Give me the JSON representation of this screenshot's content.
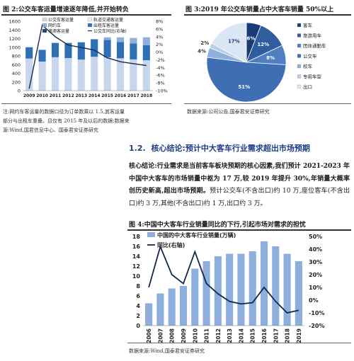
{
  "fig2": {
    "title": "图 2:公交车客运量增速逐年降低,并开始转负",
    "note_line1": "注:网约车客运量的数据口径为订单数乘以 1.5,其客运量",
    "note_line2": "部分与出租车重叠。且仅有 2015 年及以后的数据;数据来",
    "note_line3": "源:Wind,国君信息中心、国泰君安证券研究"
  },
  "fig3": {
    "title": "图 3:2019 年公交车销量占中大客车销量 50%以上",
    "source": "数据来源:公司公告,国泰君安证券研究"
  },
  "section": {
    "number": "1.2.",
    "title": "核心结论:预计中大客车行业需求超出市场预期",
    "para_bold_lead": "核心结论:",
    "para_bold_rest": "行业需求是当前客车板块预期的核心因素,我们预计 2021-2023 年中国中大客车的市场销量中枢为 17 万,较 2019 年提升 30%,年销量大概率创历史新高,超出市场预期。",
    "para_normal": "预计公交车(不含出口)约 10 万,座位客车(不含出口)约 3 万,其他(不含出口)约 1 万,出口约 3 万。"
  },
  "fig4": {
    "title": "图 4:中国中大客车行业销量同比的下行,引起市场对需求的担忧",
    "source": "数据来源:Wind,国泰君安证券研究"
  },
  "chart_data": [
    {
      "type": "bar",
      "id": "fig2",
      "stacked": true,
      "categories": [
        "2009",
        "2010",
        "2011",
        "2012",
        "2013",
        "2014",
        "2015",
        "2016",
        "2017",
        "2018"
      ],
      "series": [
        {
          "name": "公交车客运量",
          "color": "#c7d6ec",
          "values": [
            740,
            670,
            770,
            750,
            715,
            780,
            770,
            745,
            720,
            700
          ]
        },
        {
          "name": "出租车客运量",
          "color": "#2e6fb5",
          "values": [
            260,
            270,
            330,
            350,
            400,
            405,
            400,
            375,
            365,
            350
          ]
        },
        {
          "name": "网约车",
          "color": "#8fb0dc",
          "values": [
            0,
            0,
            0,
            0,
            0,
            0,
            60,
            110,
            130,
            180
          ]
        },
        {
          "name": "轨道交通客运量",
          "color": "#e7eef8",
          "values": [
            0,
            0,
            0,
            0,
            0,
            0,
            0,
            0,
            0,
            0
          ]
        },
        {
          "name": "滴滴客运量",
          "color": "#1d3f7a",
          "values": [
            0,
            0,
            0,
            0,
            0,
            0,
            0,
            0,
            0,
            0
          ]
        }
      ],
      "line": {
        "name": "公交车同比(右轴)",
        "color": "#1a2a4a",
        "values": [
          -9.5,
          7.0,
          4.0,
          1.8,
          1.2,
          0.5,
          -1.5,
          -2.5,
          -3.0,
          -3.5
        ]
      },
      "y_left": {
        "min": 0,
        "max": 1600,
        "ticks": [
          "0",
          "200",
          "400",
          "600",
          "800",
          "1000",
          "1200",
          "1400",
          "1600"
        ]
      },
      "y_right": {
        "min": -10,
        "max": 8,
        "ticks": [
          "-10%",
          "-8%",
          "-6%",
          "-4%",
          "-2%",
          "0%",
          "2%",
          "4%",
          "6%",
          "8%"
        ]
      }
    },
    {
      "type": "pie",
      "id": "fig3",
      "slices": [
        {
          "name": "客车",
          "label": "6%",
          "value": 6,
          "color": "#1a3a78"
        },
        {
          "name": "旅游用车",
          "label": "12%",
          "value": 12,
          "color": "#2f5d9e"
        },
        {
          "name": "团体通勤车",
          "label": "8%",
          "value": 8,
          "color": "#4f7fc1"
        },
        {
          "name": "公交车",
          "label": "51%",
          "value": 51,
          "color": "#3e6fb4"
        },
        {
          "name": "校车",
          "label": "4%",
          "value": 4,
          "color": "#8fb0dc"
        },
        {
          "name": "专用车型",
          "label": "2%",
          "value": 2,
          "color": "#b9cde9"
        },
        {
          "name": "出口",
          "label": "17%",
          "value": 17,
          "color": "#dbe6f5"
        }
      ]
    },
    {
      "type": "bar",
      "id": "fig4",
      "categories": [
        "2006",
        "2007",
        "2008",
        "2009",
        "2010",
        "2011",
        "2012",
        "2013",
        "2014",
        "2015",
        "2016",
        "2017",
        "2018",
        "2019"
      ],
      "series": [
        {
          "name": "中国的中大客车行业销量(万辆)",
          "color": "#8eafdc",
          "values": [
            4.5,
            6.5,
            7.5,
            8.0,
            11.5,
            13.0,
            14.0,
            14.5,
            14.5,
            15.0,
            17.0,
            16.0,
            14.5,
            13.0
          ]
        }
      ],
      "line": {
        "name": "同比(右轴)",
        "color": "#13274f",
        "values": [
          10,
          42,
          20,
          13,
          38,
          13,
          5,
          -1,
          -3,
          -2,
          10,
          -1,
          -10,
          -8
        ]
      },
      "y_left": {
        "min": 0,
        "max": 18,
        "ticks": [
          "0",
          "2",
          "4",
          "6",
          "8",
          "10",
          "12",
          "14",
          "16",
          "18"
        ]
      },
      "y_right": {
        "min": -20,
        "max": 50,
        "ticks": [
          "-20%",
          "-10%",
          "0%",
          "10%",
          "20%",
          "30%",
          "40%",
          "50%"
        ]
      }
    }
  ]
}
